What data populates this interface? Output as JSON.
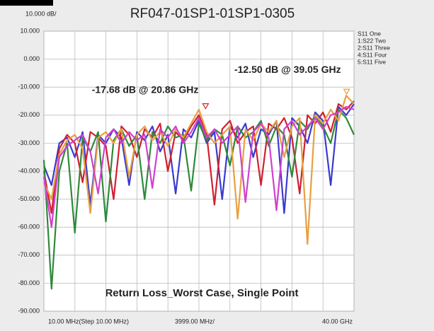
{
  "chart_data": {
    "type": "line",
    "title": "RF047-01SP1-01SP1-0305",
    "scale_label": "10.000 dB/",
    "x_labels": [
      "10.00 MHz(Step 10.00 MHz)",
      "3999.00 MHz/",
      "40.00 GHz"
    ],
    "caption": "Return Loss_Worst Case, Single Point",
    "xlim": [
      10,
      40000
    ],
    "xticks": [
      10,
      4009,
      8008,
      12007,
      16006,
      20005,
      24004,
      28003,
      32002,
      36001,
      40000
    ],
    "ylim": [
      -90,
      10
    ],
    "yticks": [
      {
        "value": 10,
        "label": "10.000"
      },
      {
        "value": 0,
        "label": "0.000"
      },
      {
        "value": -10,
        "label": "-10.000"
      },
      {
        "value": -20,
        "label": "-20.000"
      },
      {
        "value": -30,
        "label": "-30.000"
      },
      {
        "value": -40,
        "label": "-40.000"
      },
      {
        "value": -50,
        "label": "-50.000"
      },
      {
        "value": -60,
        "label": "-60.000"
      },
      {
        "value": -70,
        "label": "-70.000"
      },
      {
        "value": -80,
        "label": "-80.000"
      },
      {
        "value": -90,
        "label": "-90.000"
      }
    ],
    "grid": true,
    "legend": "top-right",
    "x": [
      10,
      1000,
      2000,
      3000,
      4000,
      5000,
      6000,
      7000,
      8000,
      9000,
      10000,
      11000,
      12000,
      13000,
      14000,
      15000,
      16000,
      17000,
      18000,
      19000,
      20000,
      21000,
      22000,
      23000,
      24000,
      25000,
      26000,
      27000,
      28000,
      29000,
      30000,
      31000,
      32000,
      33000,
      34000,
      35000,
      36000,
      37000,
      38000,
      39000,
      40000
    ],
    "series": [
      {
        "name": "S11 One",
        "color": "#3a3ad0",
        "values": [
          -38,
          -45,
          -30,
          -28,
          -35,
          -26,
          -52,
          -27,
          -30,
          -25,
          -28,
          -45,
          -26,
          -29,
          -24,
          -33,
          -27,
          -48,
          -25,
          -28,
          -22,
          -30,
          -26,
          -50,
          -24,
          -28,
          -23,
          -35,
          -25,
          -27,
          -22,
          -55,
          -21,
          -24,
          -30,
          -19,
          -22,
          -45,
          -17,
          -20,
          -16
        ]
      },
      {
        "name": "1:S22 Two",
        "color": "#d02030",
        "values": [
          -40,
          -55,
          -32,
          -27,
          -30,
          -44,
          -26,
          -28,
          -31,
          -50,
          -24,
          -27,
          -35,
          -25,
          -28,
          -23,
          -40,
          -26,
          -29,
          -24,
          -20,
          -27,
          -52,
          -25,
          -22,
          -30,
          -26,
          -24,
          -45,
          -23,
          -25,
          -21,
          -28,
          -48,
          -20,
          -23,
          -19,
          -26,
          -16,
          -18,
          -15
        ]
      },
      {
        "name": "2:S11 Three",
        "color": "#2e8a3a",
        "values": [
          -36,
          -82,
          -40,
          -30,
          -62,
          -28,
          -33,
          -26,
          -58,
          -29,
          -25,
          -31,
          -27,
          -50,
          -26,
          -30,
          -24,
          -28,
          -27,
          -47,
          -23,
          -29,
          -25,
          -27,
          -38,
          -24,
          -28,
          -26,
          -22,
          -31,
          -24,
          -27,
          -42,
          -22,
          -25,
          -20,
          -24,
          -30,
          -18,
          -21,
          -27
        ]
      },
      {
        "name": "4:S11 Four",
        "color": "#e8a040",
        "values": [
          -44,
          -50,
          -34,
          -29,
          -27,
          -32,
          -55,
          -28,
          -26,
          -30,
          -25,
          -42,
          -27,
          -24,
          -29,
          -26,
          -31,
          -25,
          -28,
          -23,
          -18,
          -26,
          -30,
          -27,
          -24,
          -57,
          -25,
          -29,
          -23,
          -26,
          -22,
          -35,
          -24,
          -21,
          -66,
          -20,
          -23,
          -18,
          -22,
          -13,
          -16
        ]
      },
      {
        "name": "5:S11 Five",
        "color": "#d040d0",
        "values": [
          -42,
          -60,
          -35,
          -31,
          -29,
          -27,
          -33,
          -48,
          -28,
          -25,
          -30,
          -26,
          -29,
          -27,
          -46,
          -25,
          -28,
          -24,
          -30,
          -26,
          -21,
          -28,
          -25,
          -30,
          -27,
          -24,
          -51,
          -26,
          -23,
          -28,
          -54,
          -25,
          -22,
          -27,
          -24,
          -21,
          -25,
          -20,
          -19,
          -17,
          -18
        ]
      }
    ],
    "markers": [
      {
        "label": "-17.68 dB @ 20.86 GHz",
        "x": 20860,
        "y": -17.68,
        "color": "#e02020"
      },
      {
        "label": "-12.50 dB @ 39.05 GHz",
        "x": 39050,
        "y": -12.5,
        "color": "#e8a040"
      }
    ]
  }
}
